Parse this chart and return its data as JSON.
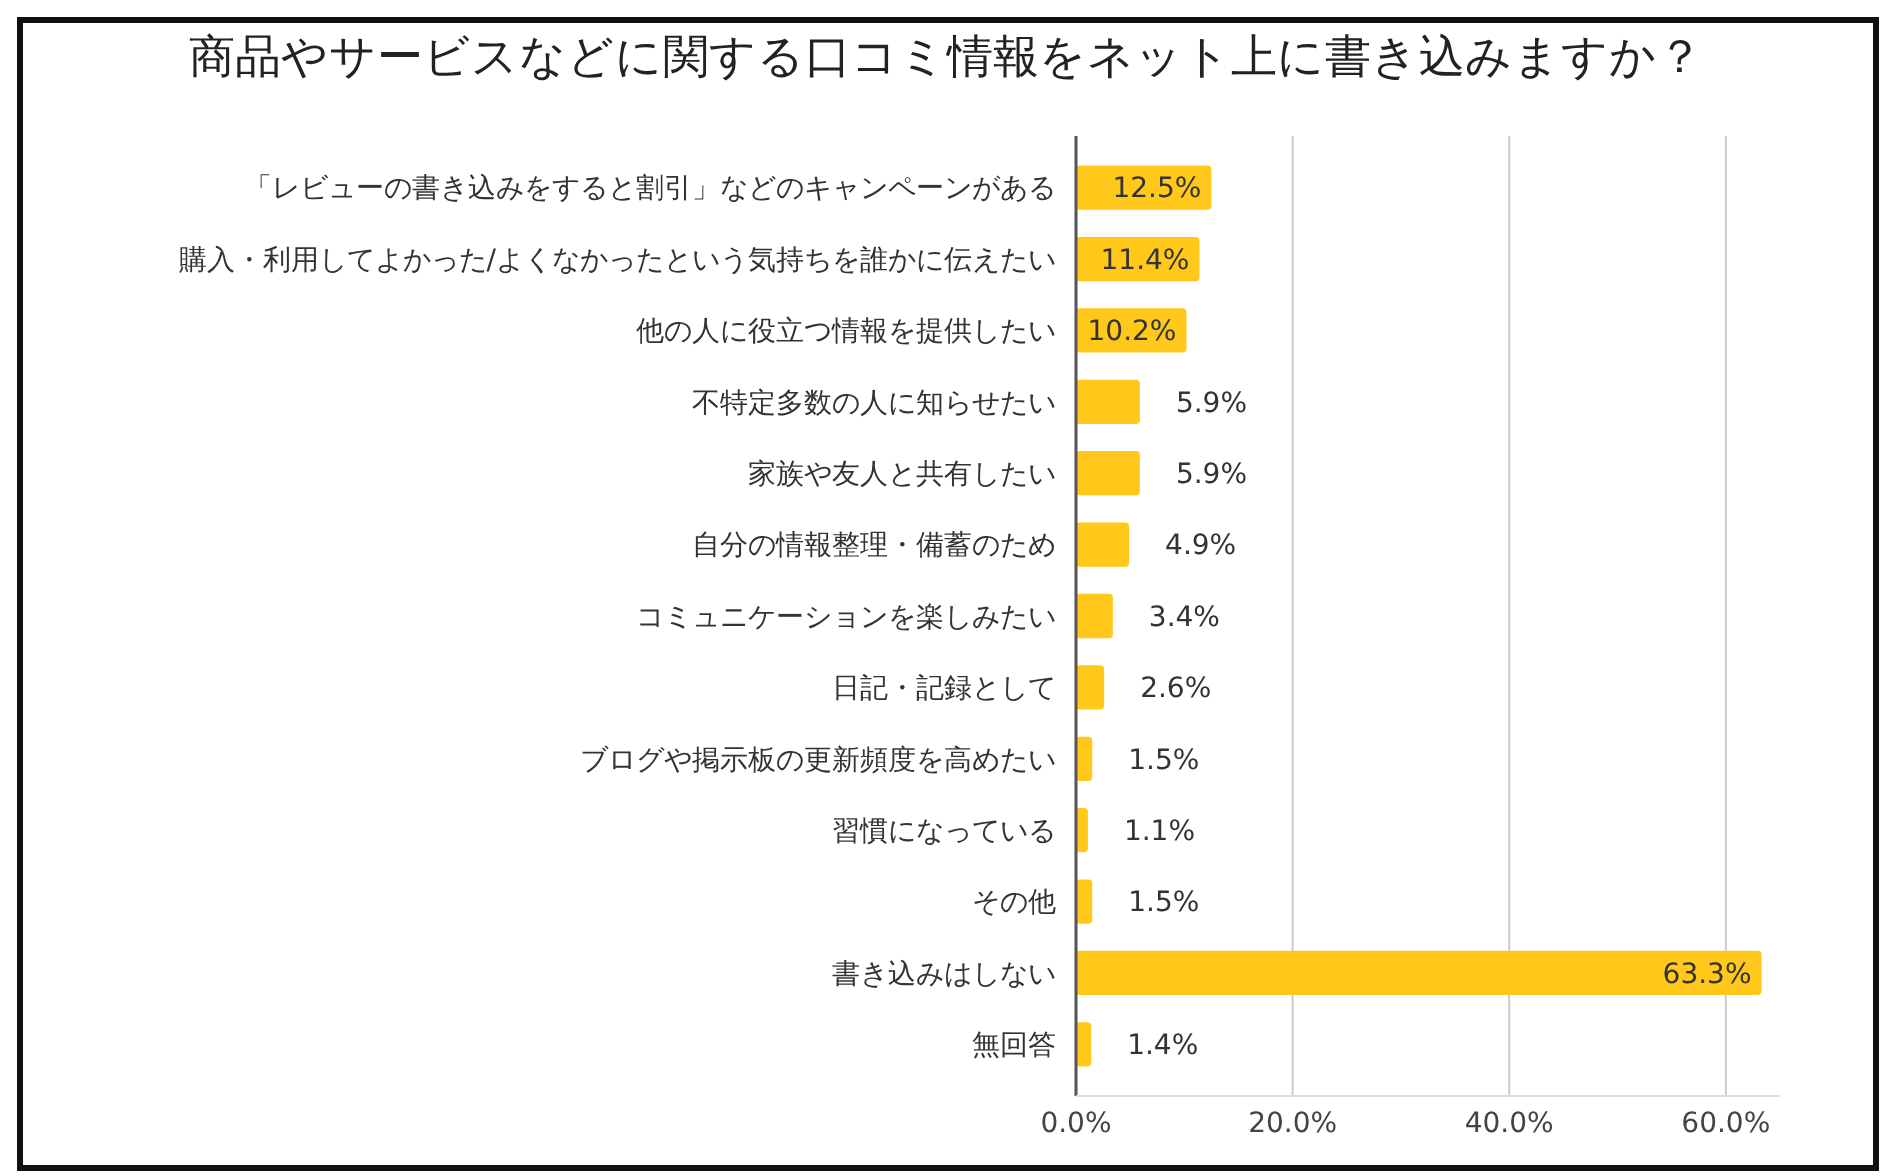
{
  "chart_data": {
    "type": "bar",
    "orientation": "horizontal",
    "title": "商品やサービスなどに関する口コミ情報をネット上に書き込みますか？",
    "categories": [
      "「レビューの書き込みをすると割引」などのキャンペーンがある",
      "購入・利用してよかった/よくなかったという気持ちを誰かに伝えたい",
      "他の人に役立つ情報を提供したい",
      "不特定多数の人に知らせたい",
      "家族や友人と共有したい",
      "自分の情報整理・備蓄のため",
      "コミュニケーションを楽しみたい",
      "日記・記録として",
      "ブログや掲示板の更新頻度を高めたい",
      "習慣になっている",
      "その他",
      "書き込みはしない",
      "無回答"
    ],
    "values": [
      12.5,
      11.4,
      10.2,
      5.9,
      5.9,
      4.9,
      3.4,
      2.6,
      1.5,
      1.1,
      1.5,
      63.3,
      1.4
    ],
    "color": "#ffc81a",
    "value_labels": [
      "12.5%",
      "11.4%",
      "10.2%",
      "5.9%",
      "5.9%",
      "4.9%",
      "3.4%",
      "2.6%",
      "1.5%",
      "1.1%",
      "1.5%",
      "63.3%",
      "1.4%"
    ],
    "xlim": [
      0,
      65
    ],
    "xticks": [
      {
        "value": 0,
        "label": "0.0%"
      },
      {
        "value": 20,
        "label": "20.0%"
      },
      {
        "value": 40,
        "label": "40.0%"
      },
      {
        "value": 60,
        "label": "60.0%"
      }
    ],
    "grid": "x"
  }
}
